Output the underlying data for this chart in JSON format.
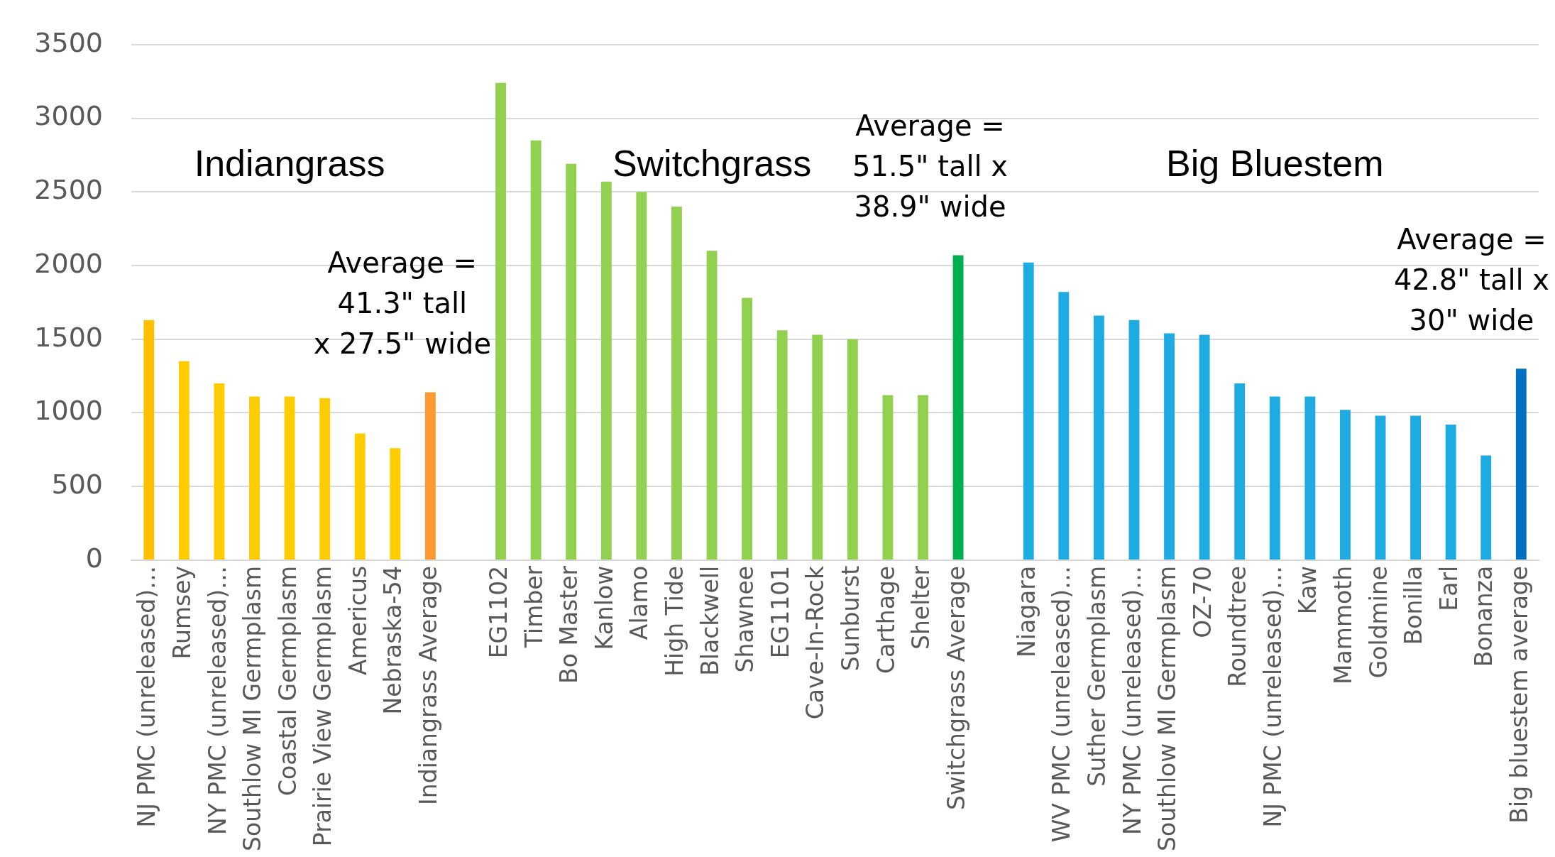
{
  "chart_data": {
    "type": "bar",
    "categories": [
      "NJ PMC (unreleased)…",
      "Rumsey",
      "NY PMC (unreleased)…",
      "Southlow MI Germplasm",
      "Coastal Germplasm",
      "Prairie View Germplasm",
      "Americus",
      "Nebraska-54",
      "Indiangrass Average",
      null,
      "EG1102",
      "Timber",
      "Bo Master",
      "Kanlow",
      "Alamo",
      "High Tide",
      "Blackwell",
      "Shawnee",
      "EG1101",
      "Cave-In-Rock",
      "Sunburst",
      "Carthage",
      "Shelter",
      "Switchgrass Average",
      null,
      "Niagara",
      "WV PMC (unreleased)…",
      "Suther Germplasm",
      "NY PMC (unreleased)…",
      "Southlow MI Germplasm",
      "OZ-70",
      "Roundtree",
      "NJ PMC (unreleased)…",
      "Kaw",
      "Mammoth",
      "Goldmine",
      "Bonilla",
      "Earl",
      "Bonanza",
      "Big bluestem average"
    ],
    "values": [
      1630,
      1350,
      1200,
      1110,
      1110,
      1100,
      860,
      760,
      1140,
      null,
      3240,
      2850,
      2690,
      2570,
      2500,
      2400,
      2100,
      1780,
      1560,
      1530,
      1500,
      1120,
      1120,
      2070,
      null,
      2020,
      1820,
      1660,
      1630,
      1540,
      1530,
      1200,
      1110,
      1110,
      1020,
      980,
      980,
      920,
      710,
      1300
    ],
    "colors": [
      "#ffc000",
      "#ffcc00",
      "#ffcc00",
      "#ffcc00",
      "#ffcc00",
      "#ffcc00",
      "#ffcc00",
      "#ffcc00",
      "#ff9933",
      null,
      "#92d050",
      "#92d050",
      "#92d050",
      "#92d050",
      "#92d050",
      "#92d050",
      "#92d050",
      "#92d050",
      "#92d050",
      "#92d050",
      "#92d050",
      "#92d050",
      "#92d050",
      "#00b050",
      null,
      "#1eabe2",
      "#1eabe2",
      "#1eabe2",
      "#1eabe2",
      "#1eabe2",
      "#1eabe2",
      "#1eabe2",
      "#1eabe2",
      "#1eabe2",
      "#1eabe2",
      "#1eabe2",
      "#1eabe2",
      "#1eabe2",
      "#1eabe2",
      "#0070c0"
    ],
    "ylim": [
      0,
      3500
    ],
    "yticks": [
      0,
      500,
      1000,
      1500,
      2000,
      2500,
      3000,
      3500
    ],
    "grid": "y",
    "annotations": [
      "Indiangrass",
      "Switchgrass",
      "Big Bluestem",
      "Average =\n41.3\" tall\nx 27.5\" wide",
      "Average =\n51.5\" tall x\n38.9\" wide",
      "Average =\n42.8\" tall x\n30\" wide"
    ]
  }
}
